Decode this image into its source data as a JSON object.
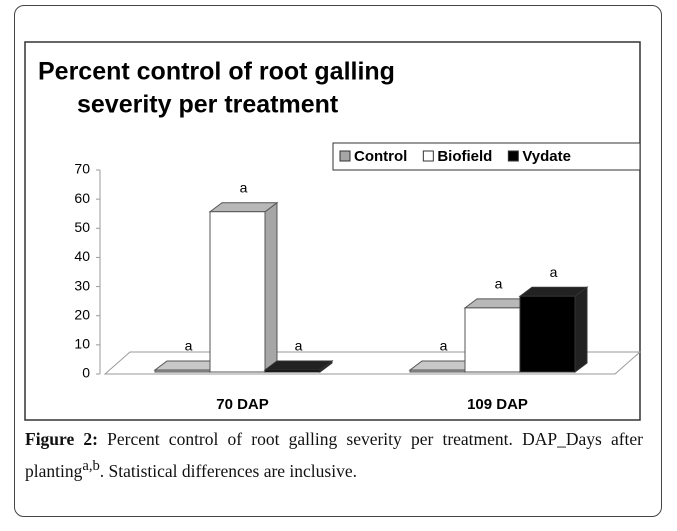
{
  "chart_data": {
    "type": "bar3d",
    "title": [
      "Percent control of root galling",
      "severity per treatment"
    ],
    "categories": [
      "70 DAP",
      "109 DAP"
    ],
    "series": [
      {
        "name": "Control",
        "color": "#a6a6a6",
        "values": [
          0,
          0
        ],
        "labels": [
          "a",
          "a"
        ]
      },
      {
        "name": "Biofield",
        "color": "#ffffff",
        "values": [
          55,
          22
        ],
        "labels": [
          "a",
          "a"
        ]
      },
      {
        "name": "Vydate",
        "color": "#000000",
        "values": [
          0,
          26
        ],
        "labels": [
          "a",
          "a"
        ]
      }
    ],
    "ylim": [
      0,
      70
    ],
    "yticks": [
      0,
      10,
      20,
      30,
      40,
      50,
      60,
      70
    ],
    "grid": false,
    "legend": "top-right"
  },
  "caption": {
    "label": "Figure 2:",
    "text": "Percent control of root galling severity per treatment. DAP_Days after planting",
    "superscript": "a,b",
    "text_after": ". Statistical differences are inclusive."
  }
}
